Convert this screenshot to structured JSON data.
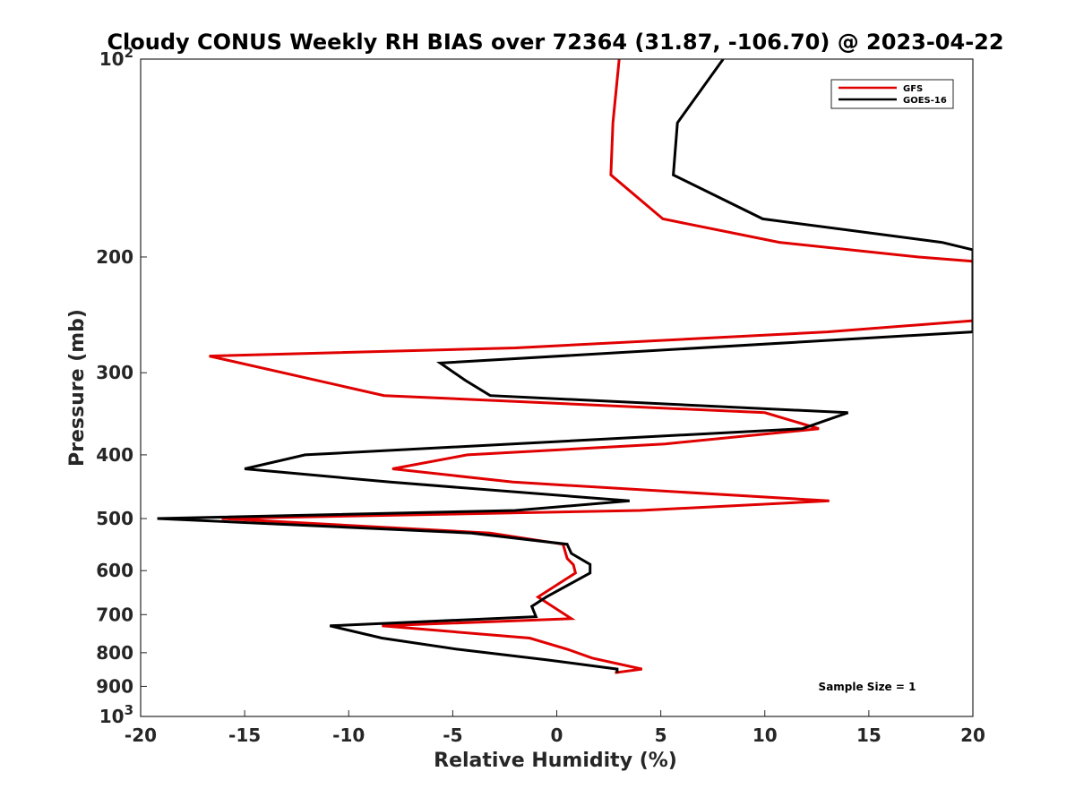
{
  "chart_data": {
    "type": "line",
    "title": "Cloudy CONUS Weekly RH BIAS over 72364 (31.87, -106.70) @ 2023-04-22",
    "xlabel": "Relative Humidity (%)",
    "ylabel": "Pressure (mb)",
    "xlim": [
      -20,
      20
    ],
    "ylim": [
      100,
      1000
    ],
    "yscale": "log",
    "yreversed": true,
    "x_ticks": [
      "-20",
      "-15",
      "-10",
      "-5",
      "0",
      "5",
      "10",
      "15",
      "20"
    ],
    "y_ticks": [
      {
        "value": 100,
        "label": "10",
        "sup": "2"
      },
      {
        "value": 200,
        "label": "200",
        "sup": ""
      },
      {
        "value": 300,
        "label": "300",
        "sup": ""
      },
      {
        "value": 400,
        "label": "400",
        "sup": ""
      },
      {
        "value": 500,
        "label": "500",
        "sup": ""
      },
      {
        "value": 600,
        "label": "600",
        "sup": ""
      },
      {
        "value": 700,
        "label": "700",
        "sup": ""
      },
      {
        "value": 800,
        "label": "800",
        "sup": ""
      },
      {
        "value": 900,
        "label": "900",
        "sup": ""
      },
      {
        "value": 1000,
        "label": "10",
        "sup": "3"
      }
    ],
    "legend_position": "top-right",
    "annotation": "Sample Size = 1",
    "series": [
      {
        "name": "GFS",
        "color": "#e00000",
        "points": [
          [
            3.0,
            100
          ],
          [
            2.7,
            125
          ],
          [
            2.6,
            150
          ],
          [
            5.1,
            175
          ],
          [
            10.7,
            190
          ],
          [
            17.4,
            200
          ],
          [
            20.0,
            203
          ],
          [
            20.0,
            250
          ],
          [
            13.0,
            260
          ],
          [
            -2.0,
            275
          ],
          [
            -16.7,
            283
          ],
          [
            -8.3,
            325
          ],
          [
            10.0,
            345
          ],
          [
            12.6,
            365
          ],
          [
            5.2,
            385
          ],
          [
            -4.3,
            400
          ],
          [
            -7.9,
            420
          ],
          [
            -2.1,
            440
          ],
          [
            13.1,
            470
          ],
          [
            4.0,
            486
          ],
          [
            -16.1,
            500
          ],
          [
            -3.2,
            526
          ],
          [
            0.3,
            547
          ],
          [
            0.5,
            575
          ],
          [
            0.8,
            588
          ],
          [
            0.9,
            605
          ],
          [
            -0.9,
            658
          ],
          [
            0.7,
            710
          ],
          [
            -8.4,
            728
          ],
          [
            -1.3,
            760
          ],
          [
            0.5,
            790
          ],
          [
            1.7,
            815
          ],
          [
            4.1,
            847
          ],
          [
            2.8,
            858
          ]
        ]
      },
      {
        "name": "GOES-16",
        "color": "#000000",
        "points": [
          [
            8.0,
            100
          ],
          [
            5.8,
            125
          ],
          [
            5.6,
            150
          ],
          [
            9.9,
            175
          ],
          [
            18.5,
            190
          ],
          [
            20.0,
            195
          ],
          [
            20.0,
            260
          ],
          [
            -5.6,
            290
          ],
          [
            -4.4,
            308
          ],
          [
            -3.2,
            325
          ],
          [
            14.0,
            345
          ],
          [
            11.8,
            365
          ],
          [
            -12.1,
            400
          ],
          [
            -15.0,
            420
          ],
          [
            -8.0,
            440
          ],
          [
            3.5,
            470
          ],
          [
            -2.0,
            486
          ],
          [
            -19.2,
            500
          ],
          [
            -4.1,
            526
          ],
          [
            0.5,
            547
          ],
          [
            0.7,
            565
          ],
          [
            1.6,
            587
          ],
          [
            1.6,
            605
          ],
          [
            -0.5,
            658
          ],
          [
            -1.2,
            680
          ],
          [
            -1.0,
            705
          ],
          [
            -10.9,
            728
          ],
          [
            -8.4,
            760
          ],
          [
            -4.8,
            790
          ],
          [
            -0.5,
            820
          ],
          [
            2.9,
            847
          ],
          [
            2.9,
            858
          ]
        ]
      }
    ]
  }
}
